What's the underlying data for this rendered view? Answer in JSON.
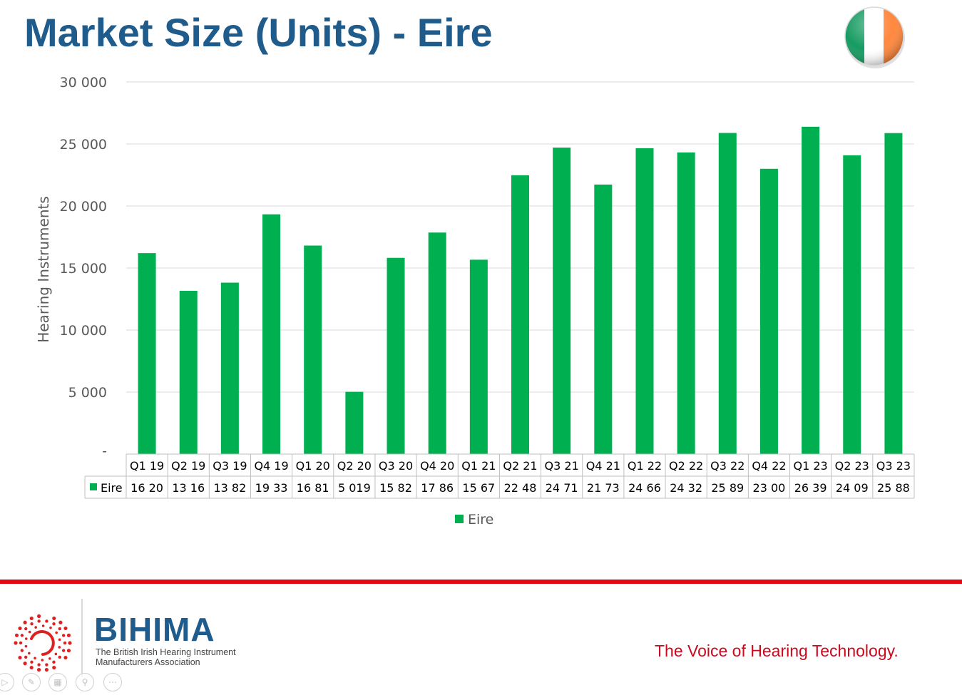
{
  "slide": {
    "title": "Market Size (Units) - Eire"
  },
  "flag": {
    "icon": "ireland-flag-icon",
    "colors": [
      "#169b62",
      "#ffffff",
      "#ff883e"
    ]
  },
  "colors": {
    "title": "#1f5c8b",
    "bar": "#00b050",
    "accent_line": "#e30613",
    "tagline": "#cc0a1e"
  },
  "chart_data": {
    "type": "bar",
    "title": "",
    "ylabel": "Hearing Instruments",
    "xlabel": "",
    "ylim": [
      0,
      30000
    ],
    "y_ticks": [
      0,
      5000,
      10000,
      15000,
      20000,
      25000,
      30000
    ],
    "y_tick_labels": [
      "-",
      "5 000",
      "10 000",
      "15 000",
      "20 000",
      "25 000",
      "30 000"
    ],
    "grid": true,
    "legend": "bottom",
    "data_table": true,
    "categories": [
      "Q1 19",
      "Q2 19",
      "Q3 19",
      "Q4 19",
      "Q1 20",
      "Q2 20",
      "Q3 20",
      "Q4 20",
      "Q1 21",
      "Q2 21",
      "Q3 21",
      "Q4 21",
      "Q1 22",
      "Q2 22",
      "Q3 22",
      "Q4 22",
      "Q1 23",
      "Q2 23",
      "Q3 23"
    ],
    "series": [
      {
        "name": "Eire",
        "color": "#00b050",
        "values": [
          16200,
          13160,
          13820,
          19330,
          16810,
          5019,
          15820,
          17860,
          15670,
          22480,
          24710,
          21730,
          24660,
          24320,
          25890,
          23000,
          26390,
          24090,
          25880
        ],
        "table_labels": [
          "16 20",
          "13 16",
          "13 82",
          "19 33",
          "16 81",
          "5 019",
          "15 82",
          "17 86",
          "15 67",
          "22 48",
          "24 71",
          "21 73",
          "24 66",
          "24 32",
          "25 89",
          "23 00",
          "26 39",
          "24 09",
          "25 88"
        ]
      }
    ]
  },
  "footer": {
    "logo_name": "BIHIMA",
    "logo_subtitle_line1": "The British Irish Hearing Instrument",
    "logo_subtitle_line2": "Manufacturers Association",
    "tagline": "The Voice of Hearing Technology.",
    "slide_controls": [
      "play-icon",
      "pen-icon",
      "slides-grid-icon",
      "zoom-icon",
      "more-options-icon"
    ]
  }
}
